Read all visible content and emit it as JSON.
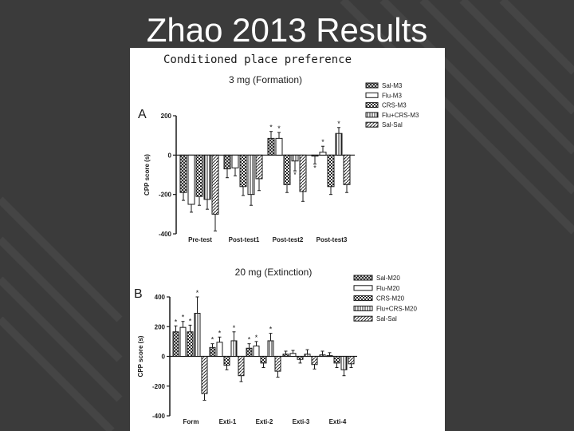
{
  "slide": {
    "title": "Zhao 2013 Results",
    "figure_heading": "Conditioned place preference"
  },
  "colors": {
    "background": "#3b3b3b",
    "stripe": "#444444",
    "panel": "#ffffff",
    "ink": "#1a1a1a"
  },
  "chart_data": [
    {
      "panel_label": "A",
      "type": "bar",
      "title": "3 mg (Formation)",
      "ylabel": "CPP score (s)",
      "xlabel": "",
      "ylim": [
        -400,
        200
      ],
      "yticks": [
        200,
        0,
        -200,
        -400
      ],
      "categories": [
        "Pre-test",
        "Post-test1",
        "Post-test2",
        "Post-test3"
      ],
      "legend_position": "top-right",
      "series": [
        {
          "name": "Sal-M3",
          "pattern": "crosshatch",
          "values": [
            -190,
            -70,
            85,
            -5
          ],
          "errors": [
            40,
            45,
            35,
            40
          ],
          "stars": [
            0,
            0,
            1,
            1
          ]
        },
        {
          "name": "Flu-M3",
          "pattern": "plain",
          "values": [
            -250,
            -65,
            85,
            15
          ],
          "errors": [
            40,
            40,
            30,
            30
          ],
          "stars": [
            0,
            0,
            1,
            1
          ]
        },
        {
          "name": "CRS-M3",
          "pattern": "checker",
          "values": [
            -210,
            -160,
            -150,
            -160
          ],
          "errors": [
            45,
            45,
            40,
            40
          ],
          "stars": [
            0,
            0,
            0,
            0
          ]
        },
        {
          "name": "Flu+CRS-M3",
          "pattern": "vertical",
          "values": [
            -225,
            -200,
            -30,
            110
          ],
          "errors": [
            50,
            55,
            50,
            30
          ],
          "stars": [
            0,
            0,
            1,
            1
          ]
        },
        {
          "name": "Sal-Sal",
          "pattern": "diagonal",
          "values": [
            -300,
            -120,
            -185,
            -150
          ],
          "errors": [
            85,
            60,
            50,
            40
          ],
          "stars": [
            0,
            0,
            0,
            0
          ]
        }
      ]
    },
    {
      "panel_label": "B",
      "type": "bar",
      "title": "20 mg (Extinction)",
      "ylabel": "CPP score (s)",
      "xlabel": "",
      "ylim": [
        -400,
        400
      ],
      "yticks": [
        400,
        200,
        0,
        -200,
        -400
      ],
      "categories": [
        "Form",
        "Exti-1",
        "Exti-2",
        "Exti-3",
        "Exti-4"
      ],
      "legend_position": "top-right",
      "series": [
        {
          "name": "Sal-M20",
          "pattern": "crosshatch",
          "values": [
            165,
            60,
            55,
            15,
            10
          ],
          "errors": [
            40,
            25,
            30,
            20,
            25
          ],
          "stars": [
            1,
            1,
            1,
            0,
            0
          ]
        },
        {
          "name": "Flu-M20",
          "pattern": "plain",
          "values": [
            195,
            95,
            70,
            20,
            5
          ],
          "errors": [
            40,
            35,
            30,
            20,
            20
          ],
          "stars": [
            1,
            1,
            1,
            0,
            0
          ]
        },
        {
          "name": "CRS-M20",
          "pattern": "checker",
          "values": [
            165,
            -60,
            -45,
            -20,
            -45
          ],
          "errors": [
            45,
            30,
            30,
            25,
            30
          ],
          "stars": [
            1,
            0,
            0,
            0,
            0
          ]
        },
        {
          "name": "Flu+CRS-M20",
          "pattern": "vertical",
          "values": [
            290,
            105,
            105,
            15,
            -90
          ],
          "errors": [
            110,
            60,
            50,
            30,
            40
          ],
          "stars": [
            1,
            1,
            1,
            0,
            0
          ]
        },
        {
          "name": "Sal-Sal",
          "pattern": "diagonal",
          "values": [
            -250,
            -130,
            -100,
            -55,
            -50
          ],
          "errors": [
            45,
            40,
            40,
            30,
            25
          ],
          "stars": [
            0,
            0,
            0,
            0,
            0
          ]
        }
      ]
    }
  ]
}
